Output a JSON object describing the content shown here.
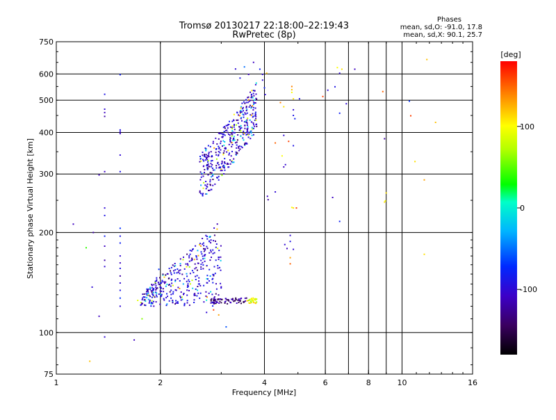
{
  "chart_data": {
    "type": "scatter",
    "title": "Tromsø 20130217 22:18:00–22:19:43",
    "subtitle": "RwPretec (8p)",
    "xlabel": "Frequency [MHz]",
    "ylabel": "Stationary phase Virtual Height [km]",
    "x_scale": "log",
    "y_scale": "log",
    "xlim": [
      1,
      16
    ],
    "ylim": [
      75,
      750
    ],
    "x_ticks": [
      1,
      2,
      4,
      6,
      8,
      10,
      16
    ],
    "x_tick_labels": [
      "1",
      "2",
      "4",
      "6",
      "8",
      "10",
      "16"
    ],
    "x_minor_grid": [
      7,
      9
    ],
    "y_ticks": [
      75,
      100,
      200,
      300,
      400,
      500,
      600,
      750
    ],
    "y_tick_labels": [
      "75",
      "100",
      "200",
      "300",
      "400",
      "500",
      "600",
      "750"
    ],
    "grid": true,
    "stats": {
      "heading": "Phases",
      "line1": "mean, sd,O: -91.0, 17.8",
      "line2": "mean, sd,X:  90.1, 25.7"
    },
    "colorbar": {
      "unit": "[deg]",
      "range": [
        -180,
        180
      ],
      "ticks": [
        100,
        0,
        -100
      ],
      "tick_labels": [
        "100",
        "0",
        "-100"
      ]
    },
    "points": [
      [
        1.12,
        212,
        -110
      ],
      [
        1.22,
        180,
        40
      ],
      [
        1.27,
        137,
        -100
      ],
      [
        1.28,
        200,
        -120
      ],
      [
        1.33,
        112,
        -110
      ],
      [
        1.33,
        298,
        -110
      ],
      [
        1.38,
        521,
        -90
      ],
      [
        1.38,
        470,
        -100
      ],
      [
        1.38,
        459,
        -110
      ],
      [
        1.38,
        447,
        -120
      ],
      [
        1.38,
        305,
        -110
      ],
      [
        1.38,
        237,
        -100
      ],
      [
        1.38,
        225,
        -90
      ],
      [
        1.38,
        195,
        -80
      ],
      [
        1.38,
        182,
        -110
      ],
      [
        1.38,
        165,
        -120
      ],
      [
        1.38,
        158,
        -100
      ],
      [
        1.38,
        97,
        -100
      ],
      [
        1.53,
        597,
        -80
      ],
      [
        1.53,
        407,
        -90
      ],
      [
        1.53,
        402,
        -100
      ],
      [
        1.53,
        397,
        -110
      ],
      [
        1.53,
        342,
        -100
      ],
      [
        1.53,
        305,
        -90
      ],
      [
        1.53,
        206,
        -70
      ],
      [
        1.53,
        195,
        -90
      ],
      [
        1.53,
        186,
        -80
      ],
      [
        1.53,
        170,
        -100
      ],
      [
        1.53,
        162,
        -110
      ],
      [
        1.53,
        156,
        -90
      ],
      [
        1.53,
        148,
        -120
      ],
      [
        1.53,
        141,
        -100
      ],
      [
        1.53,
        134,
        -90
      ],
      [
        1.53,
        127,
        -70
      ],
      [
        1.53,
        120,
        -100
      ],
      [
        1.68,
        95,
        -110
      ],
      [
        1.77,
        110,
        60
      ],
      [
        1.88,
        122,
        -20
      ],
      [
        1.72,
        125,
        90
      ],
      [
        1.25,
        82,
        120
      ],
      [
        3.1,
        104,
        -60
      ],
      [
        2.95,
        113,
        130
      ],
      [
        2.85,
        117,
        160
      ],
      [
        2.72,
        115,
        -100
      ],
      [
        1.95,
        146,
        -90
      ],
      [
        1.98,
        155,
        -70
      ],
      [
        2.0,
        141,
        -60
      ],
      [
        3.3,
        621,
        -100
      ],
      [
        3.5,
        630,
        -50
      ],
      [
        3.72,
        650,
        -110
      ],
      [
        3.88,
        620,
        -80
      ],
      [
        3.95,
        598,
        -100
      ],
      [
        3.6,
        598,
        -110
      ],
      [
        3.4,
        583,
        -90
      ],
      [
        3.95,
        575,
        -100
      ],
      [
        4.06,
        603,
        120
      ],
      [
        4.0,
        545,
        -80
      ],
      [
        4.02,
        520,
        -100
      ],
      [
        4.45,
        492,
        140
      ],
      [
        4.55,
        478,
        110
      ],
      [
        4.8,
        550,
        140
      ],
      [
        4.8,
        538,
        120
      ],
      [
        4.8,
        528,
        100
      ],
      [
        4.85,
        505,
        110
      ],
      [
        5.05,
        505,
        -90
      ],
      [
        5.9,
        513,
        160
      ],
      [
        6.1,
        536,
        -100
      ],
      [
        6.4,
        549,
        -90
      ],
      [
        6.6,
        603,
        -100
      ],
      [
        6.7,
        620,
        110
      ],
      [
        7.3,
        620,
        -110
      ],
      [
        4.85,
        468,
        -100
      ],
      [
        4.85,
        450,
        -90
      ],
      [
        4.9,
        440,
        -80
      ],
      [
        4.55,
        392,
        -100
      ],
      [
        4.7,
        376,
        160
      ],
      [
        4.85,
        365,
        -90
      ],
      [
        4.3,
        372,
        150
      ],
      [
        4.5,
        340,
        100
      ],
      [
        4.6,
        320,
        -100
      ],
      [
        4.55,
        315,
        -110
      ],
      [
        4.8,
        238,
        100
      ],
      [
        4.85,
        237,
        110
      ],
      [
        4.95,
        237,
        160
      ],
      [
        4.1,
        251,
        -120
      ],
      [
        4.08,
        257,
        -110
      ],
      [
        4.3,
        265,
        -100
      ],
      [
        4.58,
        184,
        -100
      ],
      [
        4.65,
        179,
        -110
      ],
      [
        4.75,
        196,
        -100
      ],
      [
        4.75,
        188,
        -90
      ],
      [
        4.75,
        168,
        130
      ],
      [
        4.75,
        161,
        150
      ],
      [
        4.85,
        178,
        -100
      ],
      [
        6.3,
        255,
        -110
      ],
      [
        6.6,
        216,
        -80
      ],
      [
        6.6,
        457,
        -80
      ],
      [
        6.9,
        488,
        -100
      ],
      [
        8.8,
        531,
        150
      ],
      [
        8.9,
        383,
        -120
      ],
      [
        9.0,
        263,
        110
      ],
      [
        8.95,
        249,
        100
      ],
      [
        8.9,
        247,
        110
      ],
      [
        10.5,
        497,
        -70
      ],
      [
        10.6,
        449,
        160
      ],
      [
        10.9,
        327,
        110
      ],
      [
        11.6,
        288,
        130
      ],
      [
        11.6,
        172,
        110
      ],
      [
        12.5,
        429,
        120
      ],
      [
        11.8,
        663,
        120
      ],
      [
        6.5,
        627,
        100
      ]
    ]
  }
}
